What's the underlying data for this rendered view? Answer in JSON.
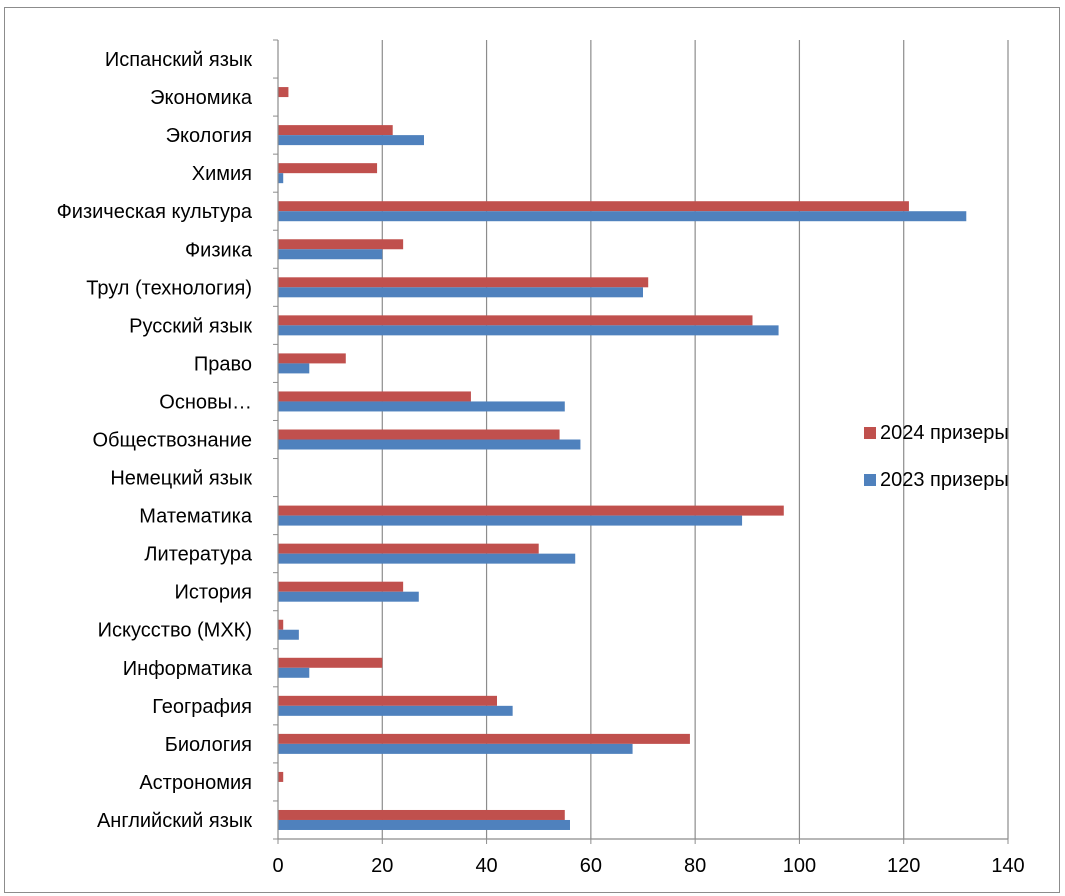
{
  "chart_data": {
    "type": "bar",
    "orientation": "horizontal",
    "title": "",
    "xlabel": "",
    "ylabel": "",
    "xlim": [
      0,
      140
    ],
    "x_ticks": [
      0,
      20,
      40,
      60,
      80,
      100,
      120,
      140
    ],
    "grid": true,
    "legend_position": "right",
    "categories": [
      "Английский язык",
      "Астрономия",
      "Биология",
      "География",
      "Информатика",
      "Искусство (МХК)",
      "История",
      "Литература",
      "Математика",
      "Немецкий язык",
      "Обществознание",
      "Основы…",
      "Право",
      "Русский язык",
      "Трул (технология)",
      "Физика",
      "Физическая культура",
      "Химия",
      "Экология",
      "Экономика",
      "Испанский язык"
    ],
    "series": [
      {
        "name": "2024 призеры",
        "color": "#c0504d",
        "values": [
          55,
          1,
          79,
          42,
          20,
          1,
          24,
          50,
          97,
          0,
          54,
          37,
          13,
          91,
          71,
          24,
          121,
          19,
          22,
          2,
          0
        ]
      },
      {
        "name": "2023 призеры",
        "color": "#4f81bd",
        "values": [
          56,
          0,
          68,
          45,
          6,
          4,
          27,
          57,
          89,
          0,
          58,
          55,
          6,
          96,
          70,
          20,
          132,
          1,
          28,
          0,
          0
        ]
      }
    ]
  }
}
